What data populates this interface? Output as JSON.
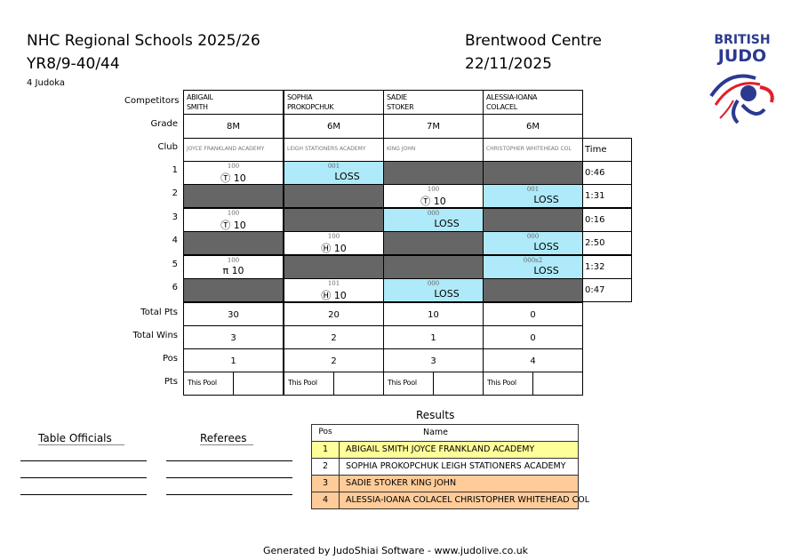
{
  "header": {
    "title": "NHC Regional Schools 2025/26",
    "category": "YR8/9-40/44",
    "count": "4 Judoka",
    "venue": "Brentwood Centre",
    "date": "22/11/2025"
  },
  "logo": {
    "text_line1": "BRITISH",
    "text_line2": "JUDO",
    "colors": {
      "blue": "#2b3a8f",
      "red": "#e01f2b"
    }
  },
  "labels": {
    "competitors": "Competitors",
    "grade": "Grade",
    "club": "Club",
    "time": "Time",
    "total_pts": "Total Pts",
    "total_wins": "Total Wins",
    "pos": "Pos",
    "pts": "Pts",
    "this_pool": "This Pool"
  },
  "competitors": [
    {
      "first": "ABIGAIL",
      "last": "SMITH",
      "grade": "8M",
      "club": "JOYCE FRANKLAND ACADEMY",
      "total_pts": "30",
      "total_wins": "3",
      "pos": "1"
    },
    {
      "first": "SOPHIA",
      "last": "PROKOPCHUK",
      "grade": "6M",
      "club": "LEIGH STATIONERS ACADEMY",
      "total_pts": "20",
      "total_wins": "2",
      "pos": "2"
    },
    {
      "first": "SADIE",
      "last": "STOKER",
      "grade": "7M",
      "club": "KING JOHN",
      "total_pts": "10",
      "total_wins": "1",
      "pos": "3"
    },
    {
      "first": "ALESSIA-IOANA",
      "last": "COLACEL",
      "grade": "6M",
      "club": "CHRISTOPHER WHITEHEAD COL",
      "total_pts": "0",
      "total_wins": "0",
      "pos": "4"
    }
  ],
  "matches": [
    {
      "num": "1",
      "time": "0:46",
      "cells": [
        {
          "type": "win",
          "code": "100",
          "icon": "Ⓣ",
          "points": "10"
        },
        {
          "type": "loss",
          "code": "001",
          "text": "LOSS"
        },
        null,
        null
      ]
    },
    {
      "num": "2",
      "time": "1:31",
      "cells": [
        null,
        null,
        {
          "type": "win",
          "code": "100",
          "icon": "Ⓣ",
          "points": "10"
        },
        {
          "type": "loss",
          "code": "001",
          "text": "LOSS"
        }
      ]
    },
    {
      "num": "3",
      "time": "0:16",
      "cells": [
        {
          "type": "win",
          "code": "100",
          "icon": "Ⓣ",
          "points": "10"
        },
        null,
        {
          "type": "loss",
          "code": "000",
          "text": "LOSS"
        },
        null
      ]
    },
    {
      "num": "4",
      "time": "2:50",
      "cells": [
        null,
        {
          "type": "win",
          "code": "100",
          "icon": "Ⓗ",
          "points": "10"
        },
        null,
        {
          "type": "loss",
          "code": "000",
          "text": "LOSS"
        }
      ]
    },
    {
      "num": "5",
      "time": "1:32",
      "cells": [
        {
          "type": "win",
          "code": "100",
          "icon": "π",
          "points": "10"
        },
        null,
        null,
        {
          "type": "loss",
          "code": "000s2",
          "text": "LOSS"
        }
      ]
    },
    {
      "num": "6",
      "time": "0:47",
      "cells": [
        null,
        {
          "type": "win",
          "code": "101",
          "icon": "Ⓗ",
          "points": "10"
        },
        {
          "type": "loss",
          "code": "000",
          "text": "LOSS"
        },
        null
      ]
    }
  ],
  "colors": {
    "loss": "#aeeaf9",
    "empty": "#666666",
    "gold": "#ffff99",
    "bronze": "#ffcc99"
  },
  "officials": {
    "table": "Table Officials",
    "referees": "Referees"
  },
  "results": {
    "title": "Results",
    "pos_header": "Pos",
    "name_header": "Name",
    "rows": [
      {
        "pos": "1",
        "name": "ABIGAIL SMITH JOYCE FRANKLAND ACADEMY",
        "medal": "gold"
      },
      {
        "pos": "2",
        "name": "SOPHIA PROKOPCHUK LEIGH STATIONERS ACADEMY",
        "medal": "silver"
      },
      {
        "pos": "3",
        "name": "SADIE STOKER KING JOHN",
        "medal": "bronze"
      },
      {
        "pos": "4",
        "name": "ALESSIA-IOANA COLACEL CHRISTOPHER WHITEHEAD COL",
        "medal": "bronze"
      }
    ]
  },
  "footer": "Generated by JudoShiai Software - www.judolive.co.uk"
}
